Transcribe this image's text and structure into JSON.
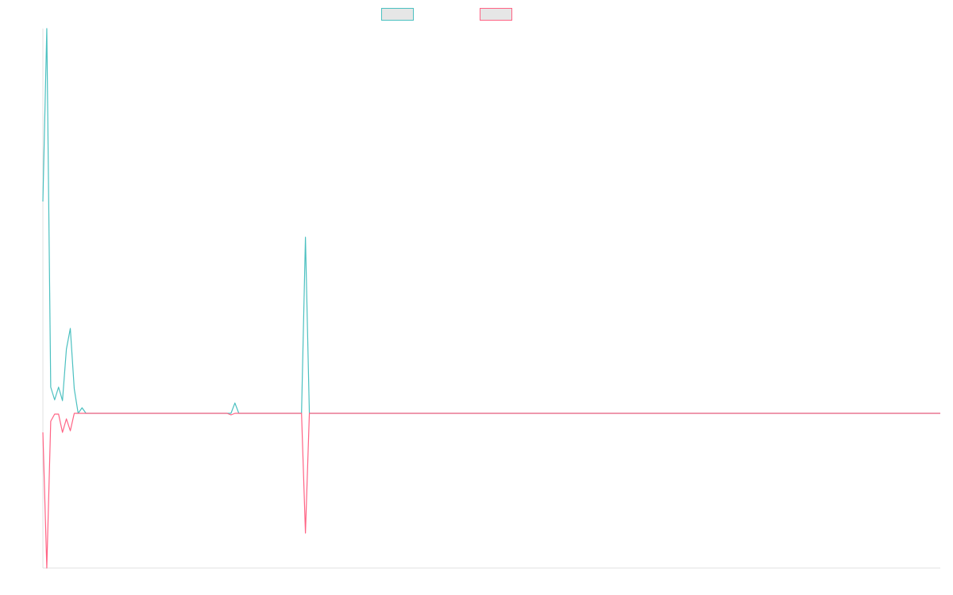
{
  "chart_data": {
    "type": "line",
    "x": [
      0,
      1,
      2,
      3,
      4,
      5,
      6,
      7,
      8,
      9,
      10,
      11,
      47,
      48,
      49,
      50,
      66,
      67,
      68,
      229
    ],
    "xlim": [
      0,
      229
    ],
    "ylim": [
      -195,
      485
    ],
    "series": [
      {
        "color": "#4bc0c0",
        "values": [
          267,
          485,
          33,
          17,
          33,
          16,
          81,
          107,
          31,
          0,
          7,
          0,
          0,
          0,
          13,
          0,
          0,
          222,
          0,
          0
        ]
      },
      {
        "color": "#ff6384",
        "values": [
          -24,
          -195,
          -10,
          -1,
          -1,
          -24,
          -7,
          -22,
          0,
          0,
          0,
          0,
          0,
          -2,
          0,
          0,
          0,
          -151,
          0,
          0
        ]
      }
    ]
  }
}
